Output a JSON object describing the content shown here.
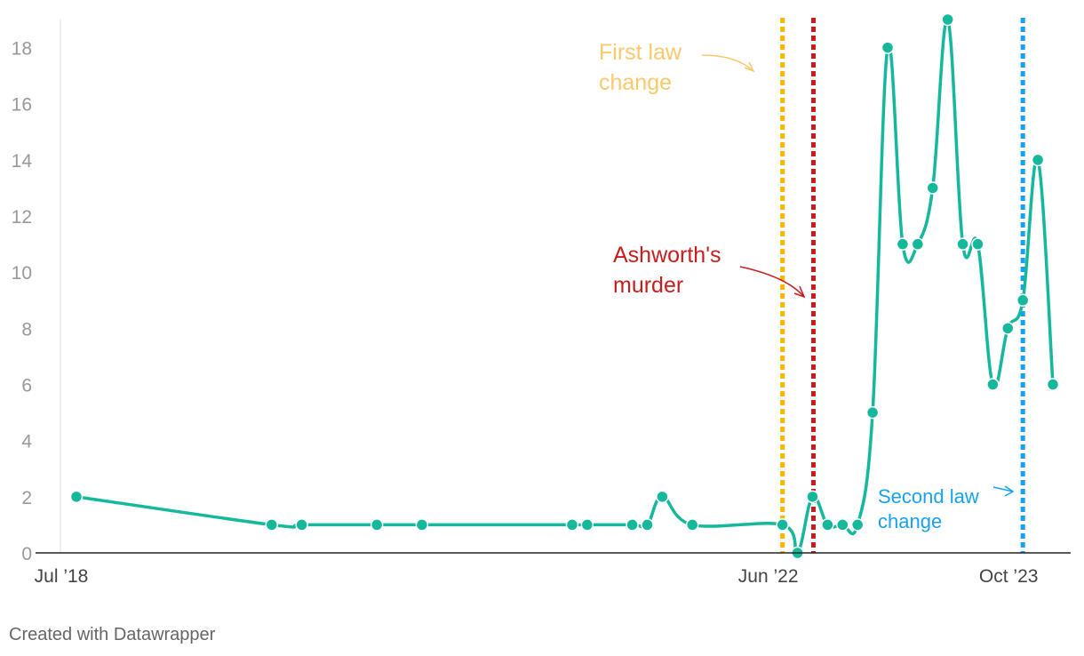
{
  "chart_data": {
    "type": "line",
    "x_axis": {
      "type": "date",
      "tick_labels": [
        "Jul ’18",
        "Jun ’22",
        "Oct ’23"
      ],
      "tick_dates": [
        "2018-07-01",
        "2022-06-01",
        "2023-10-01"
      ]
    },
    "y_axis": {
      "ylim": [
        0,
        19
      ],
      "ticks": [
        0,
        2,
        4,
        6,
        8,
        10,
        12,
        14,
        16,
        18
      ]
    },
    "grid": false,
    "series": [
      {
        "color": "#15b89a",
        "points": [
          {
            "x": "2018-07-01",
            "y": 2
          },
          {
            "x": "2019-08-01",
            "y": 1
          },
          {
            "x": "2019-10-01",
            "y": 1
          },
          {
            "x": "2020-03-01",
            "y": 1
          },
          {
            "x": "2020-06-01",
            "y": 1
          },
          {
            "x": "2021-04-01",
            "y": 1
          },
          {
            "x": "2021-05-01",
            "y": 1
          },
          {
            "x": "2021-08-01",
            "y": 1
          },
          {
            "x": "2021-09-01",
            "y": 1
          },
          {
            "x": "2021-10-01",
            "y": 2
          },
          {
            "x": "2021-12-01",
            "y": 1
          },
          {
            "x": "2022-06-01",
            "y": 1
          },
          {
            "x": "2022-07-01",
            "y": 0
          },
          {
            "x": "2022-08-01",
            "y": 2
          },
          {
            "x": "2022-09-01",
            "y": 1
          },
          {
            "x": "2022-10-01",
            "y": 1
          },
          {
            "x": "2022-11-01",
            "y": 1
          },
          {
            "x": "2022-12-01",
            "y": 5
          },
          {
            "x": "2023-01-01",
            "y": 18
          },
          {
            "x": "2023-02-01",
            "y": 11
          },
          {
            "x": "2023-03-01",
            "y": 11
          },
          {
            "x": "2023-04-01",
            "y": 13
          },
          {
            "x": "2023-05-01",
            "y": 19
          },
          {
            "x": "2023-06-01",
            "y": 11
          },
          {
            "x": "2023-07-01",
            "y": 11
          },
          {
            "x": "2023-08-01",
            "y": 6
          },
          {
            "x": "2023-09-01",
            "y": 8
          },
          {
            "x": "2023-10-01",
            "y": 9
          },
          {
            "x": "2023-11-01",
            "y": 14
          },
          {
            "x": "2023-12-01",
            "y": 6
          }
        ]
      }
    ],
    "annotations": [
      {
        "date": "2022-06-01",
        "color": "#ffb400",
        "label_lines": [
          "First law",
          "change"
        ],
        "text_color": "#f9c96c"
      },
      {
        "date": "2022-08-01",
        "color": "#c71e1d",
        "label_lines": [
          "Ashworth's",
          "murder"
        ],
        "text_color": "#c71e1d"
      },
      {
        "date": "2023-10-01",
        "color": "#18a1f0",
        "label_lines": [
          "Second law",
          "change"
        ],
        "text_color": "#18a1f0"
      }
    ]
  },
  "footer": {
    "credit": "Created with Datawrapper"
  }
}
